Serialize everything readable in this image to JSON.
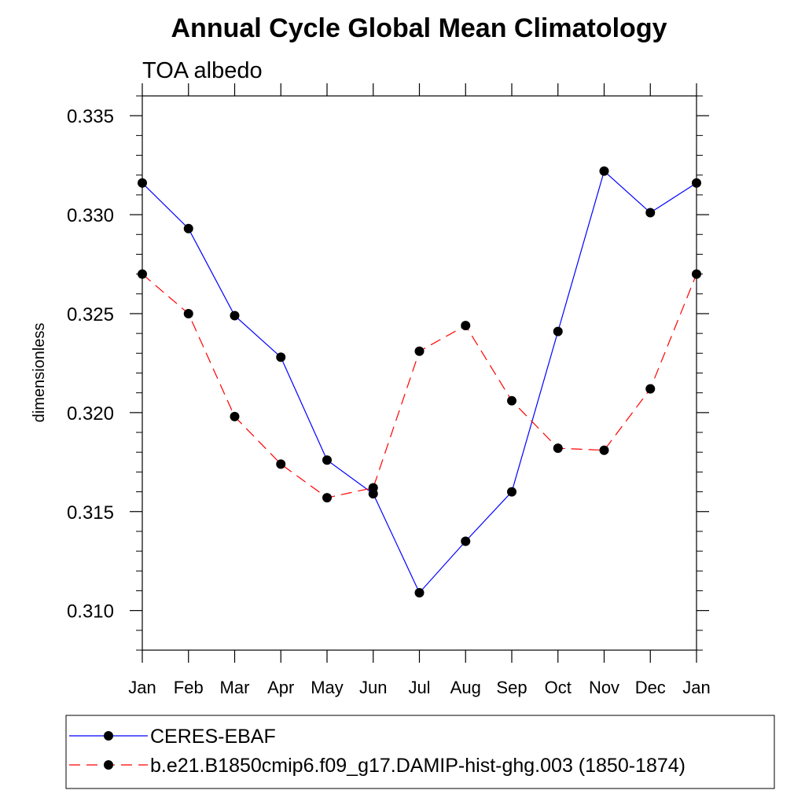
{
  "chart_data": {
    "type": "line",
    "title": "Annual Cycle Global Mean Climatology",
    "subtitle": "TOA albedo",
    "xlabel": "",
    "ylabel": "dimensionless",
    "categories": [
      "Jan",
      "Feb",
      "Mar",
      "Apr",
      "May",
      "Jun",
      "Jul",
      "Aug",
      "Sep",
      "Oct",
      "Nov",
      "Dec",
      "Jan"
    ],
    "yticks": [
      "0.310",
      "0.315",
      "0.320",
      "0.325",
      "0.330",
      "0.335"
    ],
    "ylim": [
      0.308,
      0.336
    ],
    "grid": false,
    "legend_position": "bottom",
    "series": [
      {
        "name": "CERES-EBAF",
        "color": "#0000ff",
        "style": "solid",
        "marker": "circle",
        "values": [
          0.3316,
          0.3293,
          0.3249,
          0.3228,
          0.3176,
          0.3159,
          0.3109,
          0.3135,
          0.316,
          0.3241,
          0.3322,
          0.3301,
          0.3316
        ]
      },
      {
        "name": "b.e21.B1850cmip6.f09_g17.DAMIP-hist-ghg.003 (1850-1874)",
        "color": "#ff0000",
        "style": "dashed",
        "marker": "circle",
        "values": [
          0.327,
          0.325,
          0.3198,
          0.3174,
          0.3157,
          0.3162,
          0.3231,
          0.3244,
          0.3206,
          0.3182,
          0.3181,
          0.3212,
          0.327
        ]
      }
    ]
  }
}
